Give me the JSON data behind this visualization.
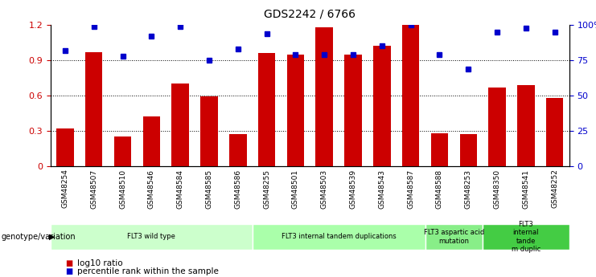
{
  "title": "GDS2242 / 6766",
  "samples": [
    "GSM48254",
    "GSM48507",
    "GSM48510",
    "GSM48546",
    "GSM48584",
    "GSM48585",
    "GSM48586",
    "GSM48255",
    "GSM48501",
    "GSM48503",
    "GSM48539",
    "GSM48543",
    "GSM48587",
    "GSM48588",
    "GSM48253",
    "GSM48350",
    "GSM48541",
    "GSM48252"
  ],
  "log10_ratio": [
    0.32,
    0.97,
    0.25,
    0.42,
    0.7,
    0.59,
    0.27,
    0.96,
    0.95,
    1.18,
    0.95,
    1.02,
    1.2,
    0.28,
    0.27,
    0.67,
    0.69,
    0.58
  ],
  "percentile_rank_pct": [
    82,
    99,
    78,
    92,
    99,
    75,
    83,
    94,
    79,
    79,
    79,
    85,
    100,
    79,
    69,
    95,
    98,
    95
  ],
  "bar_color": "#cc0000",
  "dot_color": "#0000cc",
  "yticks_left": [
    0,
    0.3,
    0.6,
    0.9,
    1.2
  ],
  "yticks_right_vals": [
    0,
    25,
    50,
    75,
    100
  ],
  "ylim_left": [
    0,
    1.2
  ],
  "ylim_right": [
    0,
    100
  ],
  "groups": [
    {
      "label": "FLT3 wild type",
      "start": 0,
      "end": 7,
      "color": "#ccffcc"
    },
    {
      "label": "FLT3 internal tandem duplications",
      "start": 7,
      "end": 13,
      "color": "#aaffaa"
    },
    {
      "label": "FLT3 aspartic acid\nmutation",
      "start": 13,
      "end": 15,
      "color": "#88ee88"
    },
    {
      "label": "FLT3\ninternal\ntande\nm duplic",
      "start": 15,
      "end": 18,
      "color": "#44cc44"
    }
  ],
  "legend_items": [
    {
      "label": "log10 ratio",
      "color": "#cc0000"
    },
    {
      "label": "percentile rank within the sample",
      "color": "#0000cc"
    }
  ],
  "xlabel_bg": "#cccccc",
  "genotype_label": "genotype/variation"
}
